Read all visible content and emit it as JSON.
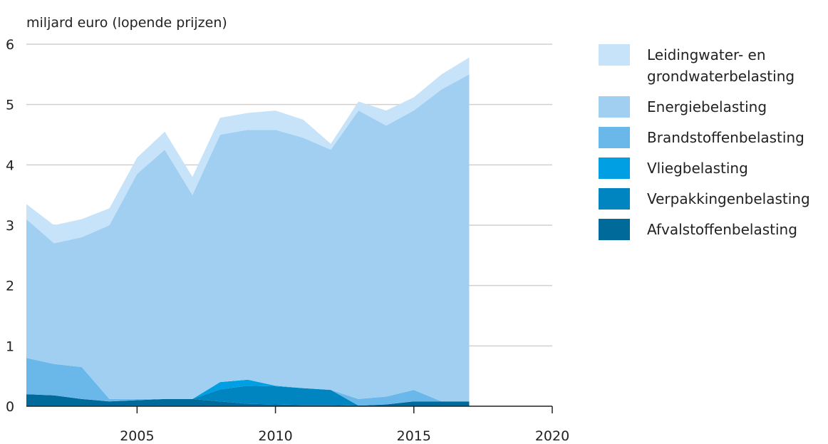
{
  "chart_data": {
    "type": "stacked_area",
    "y_label": "miljard euro (lopende prijzen)",
    "x": [
      2001,
      2002,
      2003,
      2004,
      2005,
      2006,
      2007,
      2008,
      2009,
      2010,
      2011,
      2012,
      2013,
      2014,
      2015,
      2016,
      2017
    ],
    "series": [
      {
        "name": "Afvalstoffenbelasting",
        "color": "#006a9a",
        "values": [
          0.2,
          0.18,
          0.12,
          0.08,
          0.1,
          0.12,
          0.12,
          0.08,
          0.04,
          0.03,
          0.02,
          0.02,
          0.01,
          0.03,
          0.08,
          0.08,
          0.08
        ]
      },
      {
        "name": "Verpakkingenbelasting",
        "color": "#0085c0",
        "values": [
          0,
          0,
          0,
          0,
          0,
          0,
          0,
          0.2,
          0.3,
          0.3,
          0.28,
          0.25,
          0,
          0,
          0,
          0,
          0
        ]
      },
      {
        "name": "Vliegbelasting",
        "color": "#009fe3",
        "values": [
          0,
          0,
          0,
          0,
          0,
          0,
          0,
          0.12,
          0.1,
          0.01,
          0,
          0,
          0,
          0,
          0,
          0,
          0
        ]
      },
      {
        "name": "Brandstoffenbelasting",
        "color": "#6ab8ea",
        "values": [
          0.6,
          0.52,
          0.53,
          0.04,
          0.02,
          0,
          0,
          0,
          0,
          0,
          0,
          0,
          0.11,
          0.13,
          0.19,
          0,
          0
        ]
      },
      {
        "name": "Energiebelasting",
        "color": "#a0cff2",
        "values": [
          2.3,
          2.0,
          2.15,
          2.88,
          3.73,
          4.13,
          3.38,
          4.1,
          4.14,
          4.24,
          4.15,
          3.98,
          4.78,
          4.49,
          4.63,
          5.17,
          5.42
        ]
      },
      {
        "name": "Leidingwater- en grondwaterbelasting",
        "color": "#c6e3f9",
        "values": [
          0.25,
          0.3,
          0.3,
          0.28,
          0.27,
          0.3,
          0.3,
          0.28,
          0.28,
          0.32,
          0.3,
          0.1,
          0.15,
          0.25,
          0.22,
          0.25,
          0.28
        ]
      }
    ],
    "xlim": [
      2001,
      2020
    ],
    "xticks": [
      2005,
      2010,
      2015,
      2020
    ],
    "ylim": [
      0,
      6
    ],
    "yticks": [
      0,
      1,
      2,
      3,
      4,
      5,
      6
    ],
    "grid": true
  }
}
